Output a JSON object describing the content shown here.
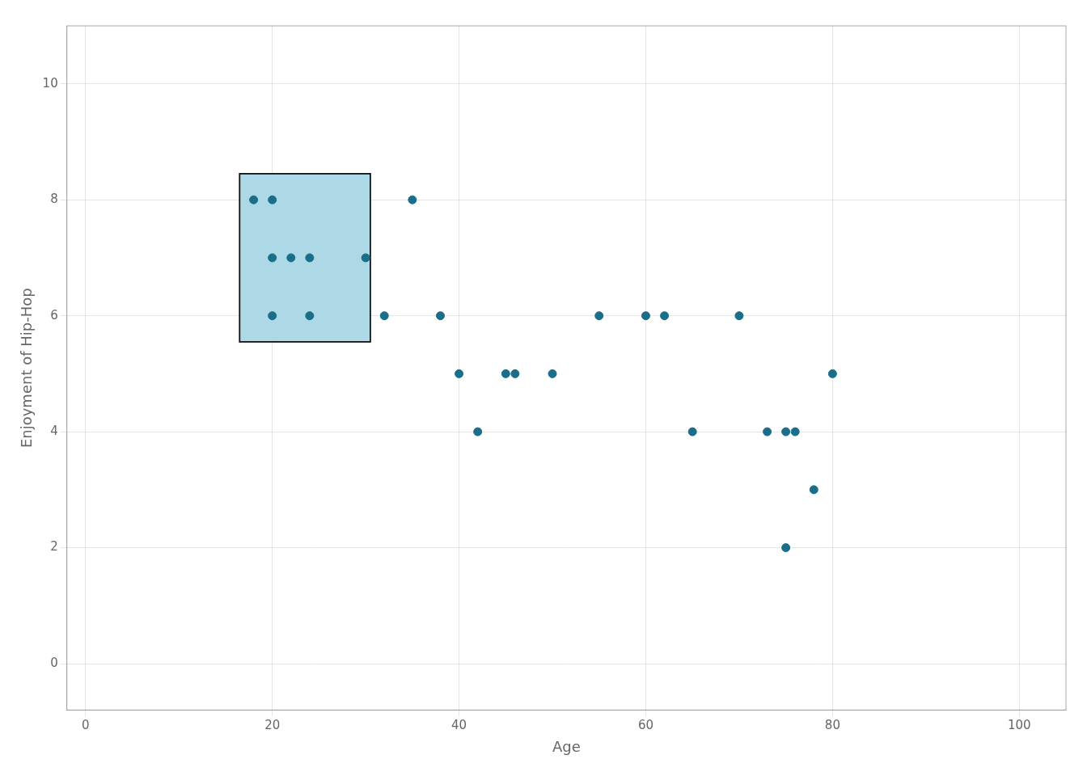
{
  "chart_data": {
    "type": "scatter",
    "xlabel": "Age",
    "ylabel": "Enjoyment of Hip-Hop",
    "x": [
      18,
      20,
      20,
      22,
      24,
      20,
      24,
      30,
      32,
      35,
      38,
      40,
      42,
      45,
      46,
      50,
      55,
      60,
      62,
      65,
      70,
      73,
      75,
      76,
      75,
      78,
      80
    ],
    "values": [
      8,
      8,
      7,
      7,
      7,
      6,
      6,
      7,
      6,
      8,
      6,
      5,
      4,
      5,
      5,
      5,
      6,
      6,
      6,
      4,
      6,
      4,
      4,
      4,
      2,
      3,
      5
    ],
    "color": "#1a6e8a",
    "xlim": [
      -2,
      105
    ],
    "ylim": [
      -0.8,
      11
    ],
    "xticks": [
      0,
      20,
      40,
      60,
      80,
      100
    ],
    "yticks": [
      0,
      2,
      4,
      6,
      8,
      10
    ],
    "grid": true,
    "box": {
      "x": 16.5,
      "y": 5.55,
      "width": 14,
      "height": 2.9,
      "color": "#add8e6",
      "edge_color": "#111111"
    }
  }
}
